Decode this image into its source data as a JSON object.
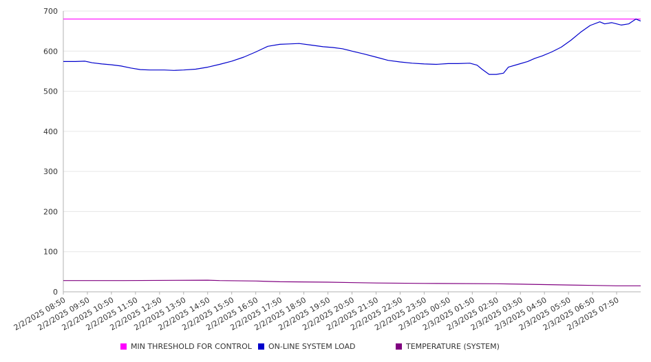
{
  "chart_data": {
    "type": "line",
    "title": "",
    "xlabel": "",
    "ylabel": "",
    "ylim": [
      0,
      700
    ],
    "yticks": [
      0,
      100,
      200,
      300,
      400,
      500,
      600,
      700
    ],
    "grid": true,
    "legend_position": "bottom",
    "x_tick_labels": [
      "2/2/2025 08:50",
      "2/2/2025 09:50",
      "2/2/2025 10:50",
      "2/2/2025 11:50",
      "2/2/2025 12:50",
      "2/2/2025 13:50",
      "2/2/2025 14:50",
      "2/2/2025 15:50",
      "2/2/2025 16:50",
      "2/2/2025 17:50",
      "2/2/2025 18:50",
      "2/2/2025 19:50",
      "2/2/2025 20:50",
      "2/2/2025 21:50",
      "2/2/2025 22:50",
      "2/2/2025 23:50",
      "2/3/2025 00:50",
      "2/3/2025 01:50",
      "2/3/2025 02:50",
      "2/3/2025 03:50",
      "2/3/2025 04:50",
      "2/3/2025 05:50",
      "2/3/2025 06:50",
      "2/3/2025 07:50"
    ],
    "x_range_hours": [
      0,
      24
    ],
    "series": [
      {
        "name": "MIN THRESHOLD FOR CONTROL",
        "color": "#ff00ff",
        "x": [
          0,
          24
        ],
        "values": [
          680,
          680
        ]
      },
      {
        "name": "ON-LINE SYSTEM LOAD",
        "color": "#0000cc",
        "x": [
          0,
          0.5,
          0.9,
          1.2,
          1.6,
          2,
          2.4,
          2.8,
          3.2,
          3.6,
          4.2,
          4.6,
          5,
          5.5,
          6,
          6.5,
          7,
          7.5,
          8,
          8.5,
          9,
          9.4,
          9.8,
          10.3,
          10.8,
          11.2,
          11.6,
          12,
          12.5,
          13,
          13.5,
          14,
          14.5,
          15,
          15.5,
          16,
          16.4,
          16.9,
          17.2,
          17.4,
          17.7,
          18,
          18.3,
          18.5,
          18.9,
          19.3,
          19.6,
          19.9,
          20.3,
          20.7,
          21.1,
          21.5,
          21.9,
          22.3,
          22.5,
          22.8,
          23.2,
          23.5,
          23.8,
          24
        ],
        "values": [
          574,
          574,
          575,
          571,
          568,
          566,
          563,
          558,
          554,
          553,
          553,
          552,
          553,
          555,
          560,
          567,
          575,
          585,
          598,
          612,
          617,
          618,
          619,
          615,
          611,
          609,
          606,
          600,
          593,
          585,
          577,
          573,
          570,
          568,
          567,
          569,
          569,
          570,
          565,
          555,
          542,
          542,
          545,
          560,
          567,
          574,
          582,
          588,
          598,
          610,
          627,
          647,
          664,
          673,
          668,
          671,
          665,
          668,
          680,
          675
        ]
      },
      {
        "name": "TEMPERATURE (SYSTEM)",
        "color": "#800080",
        "x": [
          0,
          2.5,
          6,
          6.5,
          8,
          9,
          11,
          13,
          15,
          18,
          19,
          20,
          21,
          22,
          23,
          24
        ],
        "values": [
          28,
          28,
          29,
          28,
          27,
          25,
          24,
          22,
          21,
          20,
          19,
          18,
          17,
          16,
          15,
          15
        ]
      }
    ]
  }
}
